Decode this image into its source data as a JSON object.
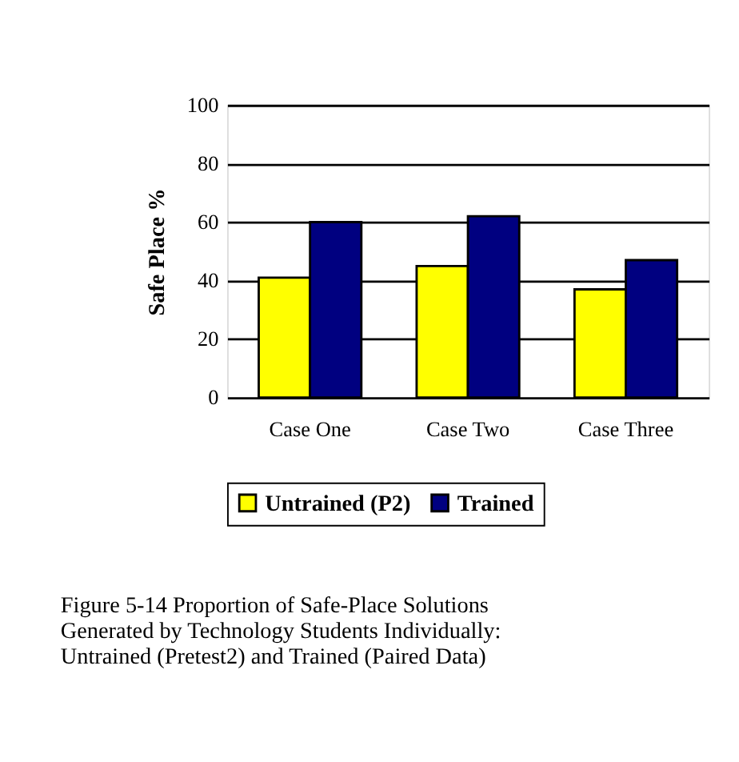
{
  "chart_data": {
    "type": "bar",
    "ylabel": "Safe Place %",
    "categories": [
      "Case One",
      "Case Two",
      "Case Three"
    ],
    "series": [
      {
        "name": "Untrained (P2)",
        "color": "#ffff00",
        "values": [
          41,
          45,
          37
        ]
      },
      {
        "name": "Trained",
        "color": "#000080",
        "values": [
          60,
          62,
          47
        ]
      }
    ],
    "ylim": [
      0,
      100
    ],
    "yticks": [
      0,
      20,
      40,
      60,
      80,
      100
    ],
    "grid": "y",
    "legend": "bottom",
    "annotations": [
      "Figure 5-14 Proportion of Safe-Place Solutions\nGenerated by Technology Students Individually:\nUntrained (Pretest2) and Trained (Paired Data)"
    ]
  }
}
